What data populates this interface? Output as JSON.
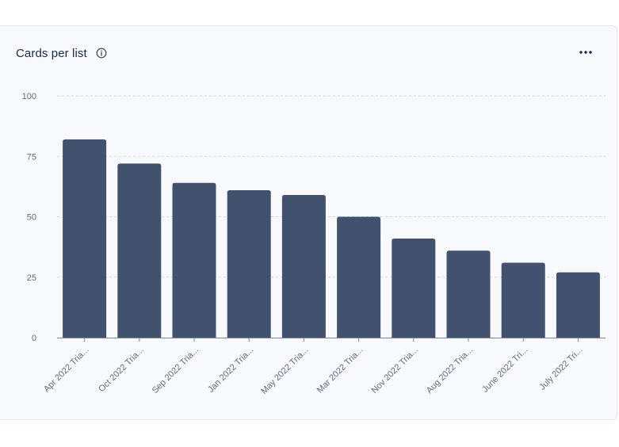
{
  "card": {
    "title": "Cards per list",
    "info_icon": "info-circle-icon",
    "more_icon": "more-horizontal-icon"
  },
  "colors": {
    "bar": "#42526e",
    "grid": "#d5d9e0",
    "axis": "#7a869a",
    "text": "#5e6c84",
    "title": "#172b4d"
  },
  "chart_data": {
    "type": "bar",
    "title": "Cards per list",
    "categories": [
      "Apr 2022 Tria...",
      "Oct 2022 Tria...",
      "Sep 2022 Tria...",
      "Jan 2022 Tria...",
      "May 2022 Tria...",
      "Mar 2022 Tria...",
      "Nov 2022 Tria...",
      "Aug 2022 Tria...",
      "June 2022 Tri...",
      "July 2022 Tri..."
    ],
    "values": [
      82,
      72,
      64,
      61,
      59,
      50,
      41,
      36,
      31,
      27
    ],
    "ylim": [
      0,
      100
    ],
    "yticks": [
      0,
      25,
      50,
      75,
      100
    ],
    "grid": true,
    "legend": "none"
  }
}
